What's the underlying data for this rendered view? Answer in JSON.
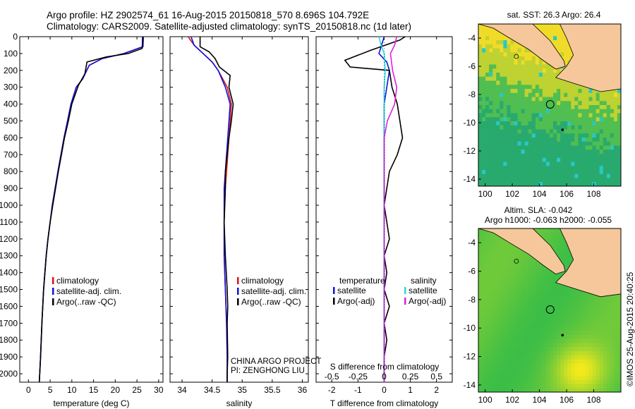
{
  "header": {
    "line1": "Argo profile: HZ 2902574_61 16-Aug-2015 20150818_570 8.696S 104.792E",
    "line2": "Climatology: CARS2009. Satellite-adjusted climatology: synTS_20150818.nc (1d later)"
  },
  "watermark": "©IMOS 25-Aug-2015 20:40:25",
  "colors": {
    "climatology": "#dd1111",
    "satellite": "#1111dd",
    "argo": "#000000",
    "sat_s": "#22dddd",
    "argo_s": "#dd22dd",
    "land": "#f5c79a"
  },
  "chart_data": [
    {
      "type": "line",
      "id": "temperature",
      "xlabel": "temperature (deg C)",
      "xlim": [
        -2,
        31
      ],
      "ylim": [
        2050,
        0
      ],
      "xticks": [
        0,
        5,
        10,
        15,
        20,
        25,
        30
      ],
      "yticks": [
        0,
        100,
        200,
        300,
        400,
        500,
        600,
        700,
        800,
        900,
        1000,
        1100,
        1200,
        1300,
        1400,
        1500,
        1600,
        1700,
        1800,
        1900,
        2000
      ],
      "legend": [
        "climatology",
        "satellite-adj. clim.",
        "Argo(..raw -QC)"
      ],
      "series": [
        {
          "name": "climatology",
          "x": [
            26.5,
            26.3,
            22,
            17,
            14,
            12.5,
            11,
            9.8,
            9,
            8.2,
            7.5,
            6.8,
            5.5,
            5.0,
            4.5,
            4.1,
            3.5,
            3.1,
            2.8,
            2.6,
            2.5
          ],
          "y": [
            0,
            60,
            100,
            130,
            170,
            250,
            300,
            400,
            500,
            600,
            700,
            800,
            1000,
            1100,
            1200,
            1300,
            1500,
            1700,
            1900,
            2000,
            2050
          ]
        },
        {
          "name": "satellite-adj. clim.",
          "x": [
            26.5,
            26.4,
            22,
            17,
            14,
            12.5,
            11,
            9.8,
            9,
            8.2,
            7.5,
            6.8,
            5.5,
            5.0,
            4.5,
            4.1,
            3.5,
            3.1,
            2.8,
            2.6,
            2.5
          ],
          "y": [
            0,
            60,
            100,
            130,
            170,
            250,
            300,
            400,
            500,
            600,
            700,
            800,
            1000,
            1100,
            1200,
            1300,
            1500,
            1700,
            1900,
            2000,
            2050
          ]
        },
        {
          "name": "Argo(..raw -QC)",
          "x": [
            26.3,
            26.2,
            23,
            18,
            13.5,
            13,
            11.5,
            10,
            9.2,
            8.3,
            7.6,
            6.9,
            5.6,
            5.0,
            4.5,
            4.1,
            3.5,
            3.1,
            2.8,
            2.6,
            2.5
          ],
          "y": [
            0,
            70,
            100,
            120,
            150,
            220,
            290,
            400,
            500,
            600,
            700,
            800,
            1000,
            1100,
            1200,
            1300,
            1500,
            1700,
            1900,
            2000,
            2050
          ]
        }
      ]
    },
    {
      "type": "line",
      "id": "salinity",
      "xlabel": "salinity",
      "xlim": [
        33.8,
        36.1
      ],
      "ylim": [
        2050,
        0
      ],
      "xticks": [
        34,
        34.5,
        35,
        35.5,
        36
      ],
      "legend": [
        "climatology",
        "satellite-adj. clim.",
        "Argo(..raw -QC)"
      ],
      "annotations": [
        "CHINA ARGO PROJECT",
        "PI: ZENGHONG LIU"
      ],
      "series": [
        {
          "name": "climatology",
          "x": [
            34.1,
            34.2,
            34.35,
            34.5,
            34.6,
            34.75,
            34.82,
            34.8,
            34.78,
            34.76,
            34.74,
            34.72,
            34.7,
            34.7,
            34.72,
            34.74,
            34.75,
            34.75
          ],
          "y": [
            0,
            50,
            100,
            150,
            200,
            300,
            400,
            500,
            600,
            700,
            800,
            900,
            1100,
            1300,
            1500,
            1700,
            1900,
            2050
          ]
        },
        {
          "name": "satellite-adj. clim.",
          "x": [
            34.15,
            34.2,
            34.35,
            34.5,
            34.6,
            34.72,
            34.8,
            34.78,
            34.76,
            34.74,
            34.72,
            34.7,
            34.7,
            34.7,
            34.72,
            34.74,
            34.75,
            34.75
          ],
          "y": [
            0,
            50,
            100,
            150,
            200,
            300,
            400,
            500,
            600,
            700,
            800,
            900,
            1100,
            1300,
            1500,
            1700,
            1900,
            2050
          ]
        },
        {
          "name": "Argo(..raw -QC)",
          "x": [
            34.3,
            34.3,
            34.45,
            34.55,
            34.62,
            34.8,
            34.78,
            34.85,
            34.82,
            34.78,
            34.75,
            34.72,
            34.72,
            34.7,
            34.72,
            34.75,
            34.76,
            34.75,
            34.76,
            34.75,
            34.75
          ],
          "y": [
            0,
            60,
            90,
            130,
            180,
            230,
            300,
            400,
            500,
            600,
            700,
            800,
            900,
            1100,
            1300,
            1500,
            1600,
            1700,
            1900,
            2000,
            2050
          ]
        }
      ]
    },
    {
      "type": "line",
      "id": "difference",
      "xlabel": "T difference from climatology",
      "xlabel_top": "S difference from climatology",
      "xlim": [
        -2.6,
        2.6
      ],
      "ylim": [
        2050,
        0
      ],
      "xticks": [
        -2,
        -1,
        0,
        1,
        2
      ],
      "xtick_labels": [
        "-2",
        "-1",
        "0",
        "1",
        "2"
      ],
      "xticks_top": [
        -0.5,
        -0.25,
        0,
        0.25,
        0.5
      ],
      "legend_left_title": "temperature",
      "legend_right_title": "salinity",
      "legend": [
        "satellite",
        "Argo(-adj)",
        "satellite",
        "Argo(-adj)"
      ],
      "series": [
        {
          "name": "T satellite",
          "x": [
            0.0,
            -0.1,
            -0.2,
            0.1,
            0.2,
            0.1,
            0.0,
            0.0,
            0.0,
            0.0,
            0.0,
            0.0,
            0.0,
            0.0,
            0.0,
            0.0
          ],
          "y": [
            0,
            50,
            100,
            150,
            200,
            300,
            400,
            600,
            800,
            1000,
            1200,
            1400,
            1600,
            1800,
            2000,
            2050
          ]
        },
        {
          "name": "T Argo",
          "x": [
            0.8,
            0.6,
            -0.5,
            -1.5,
            -1.3,
            0.2,
            0.3,
            0.5,
            0.6,
            0.7,
            0.5,
            0.2,
            0.1,
            0.0,
            0.1,
            0.2,
            0.0,
            0.1,
            0.0,
            0.2,
            0.0,
            0.1,
            0.0,
            0.0
          ],
          "y": [
            0,
            20,
            80,
            140,
            180,
            200,
            300,
            400,
            500,
            600,
            700,
            800,
            900,
            1000,
            1100,
            1200,
            1300,
            1400,
            1500,
            1600,
            1700,
            1800,
            1900,
            2050
          ]
        },
        {
          "name": "S satellite",
          "x": [
            -0.05,
            -0.03,
            0.0,
            0.01,
            0.0,
            0.0,
            0.0,
            0.0,
            0.0,
            0.0,
            0.0
          ],
          "y": [
            0,
            50,
            100,
            200,
            300,
            500,
            800,
            1100,
            1500,
            1900,
            2050
          ]
        },
        {
          "name": "S Argo",
          "x": [
            0.12,
            0.1,
            0.06,
            0.08,
            0.12,
            0.1,
            0.03,
            0.0,
            0.0,
            0.0,
            0.0,
            0.0,
            0.0,
            0.0,
            0.0
          ],
          "y": [
            0,
            50,
            100,
            200,
            300,
            400,
            500,
            600,
            800,
            1000,
            1200,
            1400,
            1600,
            1800,
            2050
          ]
        }
      ]
    },
    {
      "type": "heatmap",
      "id": "sst-map",
      "title": "sat. SST: 26.3 Argo: 26.4",
      "xlim": [
        99.5,
        110
      ],
      "ylim": [
        -14.5,
        -3
      ],
      "xticks": [
        100,
        102,
        104,
        106,
        108
      ],
      "yticks": [
        -4,
        -6,
        -8,
        -10,
        -12,
        -14
      ]
    },
    {
      "type": "heatmap",
      "id": "sla-map",
      "title_line1": "Altim. SLA: -0.042",
      "title_line2": "Argo h1000: -0.063 h2000: -0.055",
      "xlim": [
        99.5,
        110
      ],
      "ylim": [
        -14.5,
        -3
      ],
      "xticks": [
        100,
        102,
        104,
        106,
        108
      ],
      "yticks": [
        -4,
        -6,
        -8,
        -10,
        -12,
        -14
      ]
    }
  ]
}
